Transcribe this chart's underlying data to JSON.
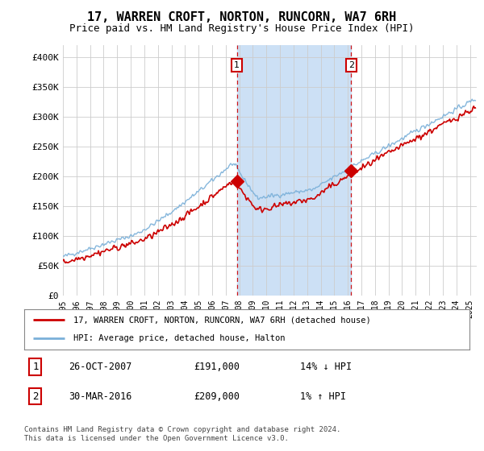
{
  "title": "17, WARREN CROFT, NORTON, RUNCORN, WA7 6RH",
  "subtitle": "Price paid vs. HM Land Registry's House Price Index (HPI)",
  "title_fontsize": 11,
  "subtitle_fontsize": 9,
  "ylabel_ticks": [
    "£0",
    "£50K",
    "£100K",
    "£150K",
    "£200K",
    "£250K",
    "£300K",
    "£350K",
    "£400K"
  ],
  "ytick_values": [
    0,
    50000,
    100000,
    150000,
    200000,
    250000,
    300000,
    350000,
    400000
  ],
  "ylim": [
    0,
    420000
  ],
  "xlim_start": 1995.3,
  "xlim_end": 2025.5,
  "background_color": "#f0f0f0",
  "grid_color": "#cccccc",
  "hpi_color": "#7ab0d9",
  "price_color": "#cc0000",
  "marker_color": "#cc0000",
  "vline_color": "#cc0000",
  "span_color": "#cce0f5",
  "transaction1_x": 2007.82,
  "transaction1_y": 191000,
  "transaction2_x": 2016.25,
  "transaction2_y": 209000,
  "legend_line1": "17, WARREN CROFT, NORTON, RUNCORN, WA7 6RH (detached house)",
  "legend_line2": "HPI: Average price, detached house, Halton",
  "annotation1_date": "26-OCT-2007",
  "annotation1_price": "£191,000",
  "annotation1_pct": "14% ↓ HPI",
  "annotation2_date": "30-MAR-2016",
  "annotation2_price": "£209,000",
  "annotation2_pct": "1% ↑ HPI",
  "footer": "Contains HM Land Registry data © Crown copyright and database right 2024.\nThis data is licensed under the Open Government Licence v3.0.",
  "xtick_years": [
    1995,
    1996,
    1997,
    1998,
    1999,
    2000,
    2001,
    2002,
    2003,
    2004,
    2005,
    2006,
    2007,
    2008,
    2009,
    2010,
    2011,
    2012,
    2013,
    2014,
    2015,
    2016,
    2017,
    2018,
    2019,
    2020,
    2021,
    2022,
    2023,
    2024,
    2025
  ]
}
